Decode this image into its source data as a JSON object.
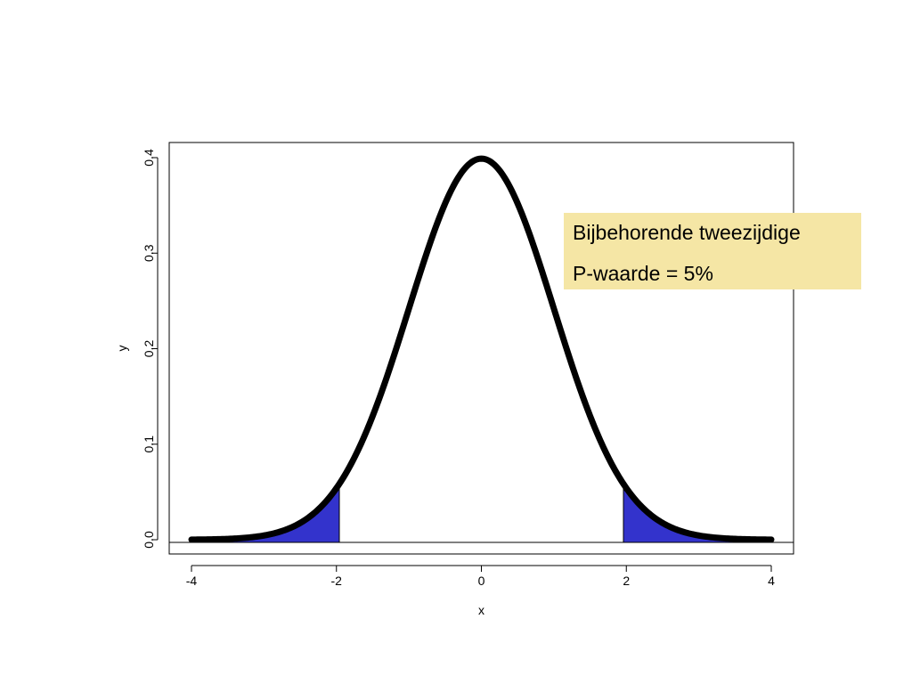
{
  "chart_data": {
    "type": "area",
    "title": "",
    "xlabel": "x",
    "ylabel": "y",
    "xlim": [
      -4,
      4
    ],
    "ylim": [
      0,
      0.4
    ],
    "x_ticks": [
      "-4",
      "-2",
      "0",
      "2",
      "4"
    ],
    "y_ticks": [
      "0.0",
      "0.1",
      "0.2",
      "0.3",
      "0.4"
    ],
    "grid": false,
    "legend": "none",
    "series": [
      {
        "function": "standard-normal-density",
        "mean": 0,
        "sd": 1,
        "x_range": [
          -4,
          4
        ],
        "color": "#000000"
      }
    ],
    "shaded_regions": [
      {
        "from": -4,
        "to": -1.96,
        "color": "#3333cc"
      },
      {
        "from": 1.96,
        "to": 4,
        "color": "#3333cc"
      }
    ],
    "annotation": {
      "lines": [
        "Bijbehorende tweezijdige",
        "P-waarde = 5%"
      ],
      "background": "#f5e6a5"
    }
  }
}
